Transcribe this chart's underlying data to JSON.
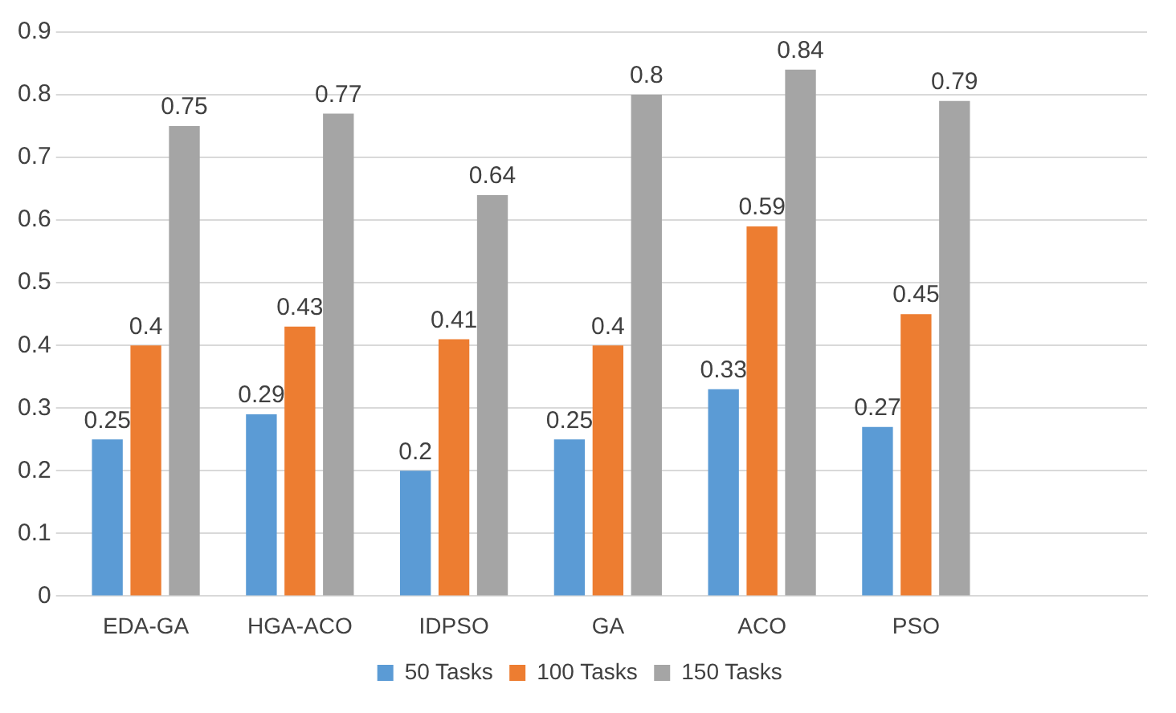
{
  "chart_data": {
    "type": "bar",
    "categories": [
      "EDA-GA",
      "HGA-ACO",
      "IDPSO",
      "GA",
      "ACO",
      "PSO",
      null
    ],
    "series": [
      {
        "name": "50 Tasks",
        "color": "#5b9bd5",
        "values": [
          0.25,
          0.29,
          0.2,
          0.25,
          0.33,
          0.27,
          null
        ]
      },
      {
        "name": "100 Tasks",
        "color": "#ed7d31",
        "values": [
          0.4,
          0.43,
          0.41,
          0.4,
          0.59,
          0.45,
          null
        ]
      },
      {
        "name": "150 Tasks",
        "color": "#a5a5a5",
        "values": [
          0.75,
          0.77,
          0.64,
          0.8,
          0.84,
          0.79,
          null
        ]
      }
    ],
    "ylim": [
      0,
      0.9
    ],
    "yticks": [
      0,
      0.1,
      0.2,
      0.3,
      0.4,
      0.5,
      0.6,
      0.7,
      0.8,
      0.9
    ],
    "grid": "y",
    "legend": "bottom",
    "data_labels": true
  }
}
